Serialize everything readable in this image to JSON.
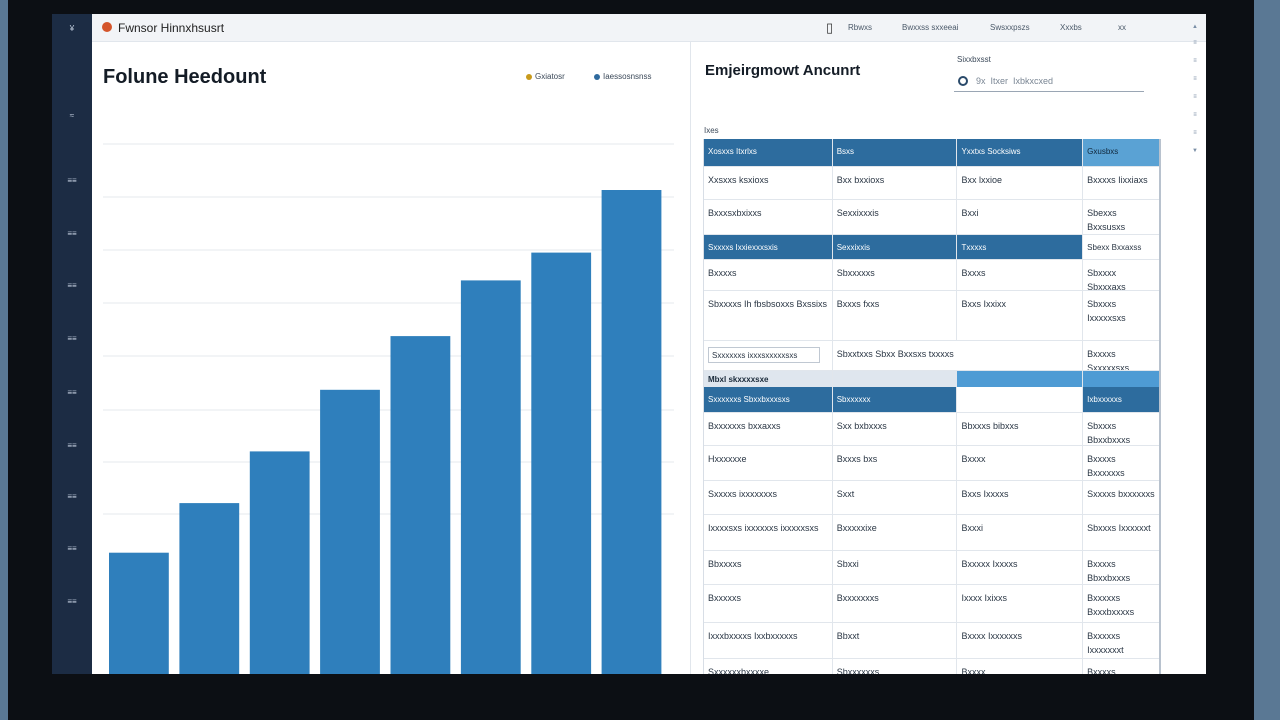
{
  "topbar": {
    "title": "Fwnsor Hinnxhsusrt",
    "icon": "document-icon",
    "links": [
      "Rbwxs",
      "Bwxxss sxxeeai",
      "Swsxxpszs",
      "Xxxbs",
      "xx"
    ]
  },
  "rail": {
    "ticks": [
      "¥",
      "≈",
      "≡≡",
      "≡≡",
      "≡≡",
      "≡≡",
      "≡≡",
      "≡≡",
      "≡≡",
      "≡≡",
      "≡≡"
    ]
  },
  "chart_panel": {
    "title": "Folune Heedount",
    "legend": [
      {
        "label": "Gxiatosr",
        "color": "#c89a1c"
      },
      {
        "label": "Iaessosnsnss",
        "color": "#2f6a9e"
      }
    ]
  },
  "chart_data": {
    "type": "bar",
    "title": "Folune Heedount",
    "categories": [
      "",
      "",
      "",
      "",
      "",
      "",
      "",
      ""
    ],
    "values": [
      122,
      172,
      224,
      286,
      340,
      396,
      424,
      487
    ],
    "ylim": [
      0,
      490
    ],
    "xlabel": "",
    "ylabel": "",
    "grid": true,
    "color": "#2f7fbc"
  },
  "table_panel": {
    "title": "Emjeirgmowt Ancunrt",
    "search_label": "Sixxbxsst",
    "search_placeholder": "9x  Itxer  Ixbkxcxed",
    "caption": "Ixes",
    "header": [
      "Xosxxs Itxrlxs",
      "Bsxs",
      "Yxxtxs Socksiws",
      "Gxusbxs"
    ],
    "rows": [
      {
        "type": "data",
        "cells": [
          "Xxsxxs ksxioxs",
          "Bxx bxxioxs",
          "Bxx lxxioe",
          "Bxxxxs Iixxiaxs"
        ]
      },
      {
        "type": "data",
        "cells": [
          "Bxxxsxbxixxs",
          "Sexxixxxis",
          "Bxxi",
          "Sbexxs Bxxsusxs"
        ]
      },
      {
        "type": "sub",
        "cells": [
          "Sxxxxs Ixxiexxxsxis",
          "Sexxixxis",
          "Txxxxs",
          "Sbexx Bxxaxss"
        ]
      },
      {
        "type": "data",
        "cells": [
          "Bxxxxs",
          "Sbxxxxxs",
          "Bxxxs",
          "Sbxxxx Sbxxxaxs"
        ]
      },
      {
        "type": "data2",
        "cells": [
          "Sbxxxxs Ih fbsbsoxxs Bxssixs",
          "Bxxxs fxxs",
          "Bxxs Ixxixx",
          "Sbxxxs Ixxxxxsxs"
        ]
      },
      {
        "type": "input",
        "cells": [
          "Sxxxxxxs ixxxsxxxxxsxs",
          "Sbxxtxxs Sbxx  Bxxsxs txxxxs",
          "",
          "Bxxxxs Sxxxxxsxs"
        ]
      },
      {
        "type": "banner",
        "cells": [
          "Mbxl skxxxxsxe",
          "",
          "",
          ""
        ]
      },
      {
        "type": "sub alt-none",
        "cells": [
          "Sxxxxxxs Sbxxbxxxsxs",
          "Sbxxxxxx",
          "",
          "Ixbxxxxxs"
        ]
      },
      {
        "type": "data",
        "cells": [
          "Bxxxxxxs bxxaxxs",
          "Sxx bxbxxxs",
          "Bbxxxs bibxxs",
          "Sbxxxs Bbxxbxxxs"
        ]
      },
      {
        "type": "data",
        "cells": [
          "Hxxxxxxe",
          "Bxxxs bxs",
          "Bxxxx",
          "Bxxxxs Bxxxxxxs"
        ]
      },
      {
        "type": "data",
        "cells": [
          "Sxxxxs ixxxxxxxs",
          "Sxxt",
          "Bxxs Ixxxxs",
          "Sxxxxs bxxxxxxs"
        ]
      },
      {
        "type": "data",
        "cells": [
          "Ixxxxsxs ixxxxxxs ixxxxxsxs",
          "Bxxxxxixe",
          "Bxxxi",
          "Sbxxxs Ixxxxxxt"
        ]
      },
      {
        "type": "data",
        "cells": [
          "Bbxxxxs",
          "Sbxxi",
          "Bxxxxx Ixxxxs",
          "Bxxxxs Bbxxbxxxs"
        ]
      },
      {
        "type": "data",
        "cells": [
          "Bxxxxxs",
          "Bxxxxxxxs",
          "Ixxxx Ixixxs",
          "Bxxxxxs Bxxxbxxxxs"
        ]
      },
      {
        "type": "data",
        "cells": [
          "Ixxxbxxxxs Ixxbxxxxxs",
          "Bbxxt",
          "Bxxxx Ixxxxxxs",
          "Bxxxxxs Ixxxxxxxt"
        ]
      },
      {
        "type": "data",
        "cells": [
          "Sxxxxxxbxxxxe",
          "Sbxxxxxxs",
          "Bxxxx",
          "Bxxxxs Ixxxxxxxs"
        ]
      }
    ]
  }
}
